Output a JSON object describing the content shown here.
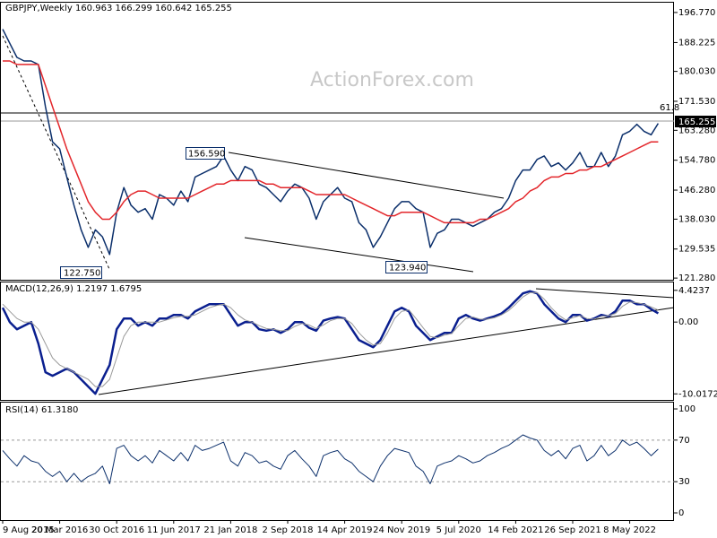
{
  "chart_data": [
    {
      "type": "line",
      "title": "GBPJPY,Weekly  160.963 166.299 160.642 165.255",
      "watermark": "ActionForex.com",
      "annotations": [
        "156.590",
        "122.750",
        "123.940",
        "61.8"
      ],
      "price_label": "165.255",
      "ylim": [
        120.8,
        199.3
      ],
      "yticks": [
        {
          "value": 196.77,
          "label": "196.770"
        },
        {
          "value": 188.225,
          "label": "188.225"
        },
        {
          "value": 180.03,
          "label": "180.030"
        },
        {
          "value": 171.53,
          "label": "171.530"
        },
        {
          "value": 163.28,
          "label": "163.280"
        },
        {
          "value": 154.78,
          "label": "154.780"
        },
        {
          "value": 146.28,
          "label": "146.280"
        },
        {
          "value": 138.03,
          "label": "138.030"
        },
        {
          "value": 129.535,
          "label": "129.535"
        },
        {
          "value": 121.28,
          "label": "121.280"
        }
      ],
      "series": [
        {
          "color": "#0b2f6b",
          "values": [
            192,
            188,
            184,
            183,
            183,
            182,
            170,
            160,
            158,
            150,
            142,
            135,
            130,
            135,
            133,
            128,
            140,
            147,
            142,
            140,
            141,
            138,
            145,
            144,
            142,
            146,
            143,
            150,
            151,
            152,
            153,
            156,
            152,
            149,
            153,
            152,
            148,
            147,
            145,
            143,
            146,
            148,
            147,
            144,
            138,
            143,
            145,
            147,
            144,
            143,
            137,
            135,
            130,
            133,
            137,
            141,
            143,
            143,
            141,
            140,
            130,
            134,
            135,
            138,
            138,
            137,
            136,
            137,
            138,
            140,
            141,
            144,
            149,
            152,
            152,
            155,
            156,
            153,
            154,
            152,
            154,
            157,
            153,
            153,
            157,
            153,
            156,
            162,
            163,
            165,
            163,
            162,
            165.255
          ]
        },
        {
          "color": "#e3262b",
          "values": [
            183,
            183,
            182,
            182,
            182,
            182,
            176,
            170,
            164,
            158,
            153,
            148,
            143,
            140,
            138,
            138,
            140,
            143,
            145,
            146,
            146,
            145,
            144,
            144,
            144,
            144,
            144,
            145,
            146,
            147,
            148,
            148,
            149,
            149,
            149,
            149,
            149,
            148,
            148,
            147,
            147,
            147,
            147,
            146,
            145,
            145,
            145,
            145,
            145,
            144,
            143,
            142,
            141,
            140,
            139,
            139,
            140,
            140,
            140,
            140,
            139,
            138,
            137,
            137,
            137,
            137,
            137,
            138,
            138,
            139,
            140,
            141,
            143,
            144,
            146,
            147,
            149,
            150,
            150,
            151,
            151,
            152,
            152,
            153,
            153,
            154,
            155,
            156,
            157,
            158,
            159,
            160,
            160
          ]
        }
      ]
    },
    {
      "type": "line",
      "title": "MACD(12,26,9) 1.2197 1.6795",
      "ylim": [
        -10.86,
        5.4
      ],
      "yticks": [
        4.4237,
        {
          "value": 0,
          "label": "0.00"
        },
        -10.0172
      ],
      "series": [
        {
          "color": "#0a1f8f",
          "width": 2.5,
          "values": [
            2,
            0,
            -1,
            -0.5,
            0,
            -3,
            -7,
            -7.5,
            -7,
            -6.5,
            -7,
            -8,
            -9,
            -10,
            -8,
            -6,
            -1,
            0.5,
            0.5,
            -0.5,
            0,
            -0.5,
            0.5,
            0.5,
            1,
            1,
            0.5,
            1.5,
            2,
            2.5,
            2.5,
            2.5,
            1,
            -0.5,
            0,
            0,
            -1,
            -1.2,
            -1,
            -1.5,
            -1,
            0,
            0,
            -0.8,
            -1.2,
            0.2,
            0.5,
            0.7,
            0.5,
            -1,
            -2.5,
            -3,
            -3.5,
            -2.5,
            -0.5,
            1.5,
            2,
            1.5,
            -0.5,
            -1.5,
            -2.5,
            -2,
            -1.5,
            -1.5,
            0.5,
            1,
            0.5,
            0.2,
            0.5,
            0.8,
            1.2,
            2,
            3,
            4,
            4.3,
            4,
            2.5,
            1.5,
            0.5,
            0,
            1,
            1,
            0.2,
            0.5,
            1,
            0.8,
            1.5,
            3,
            3,
            2.5,
            2.5,
            1.8,
            1.2197
          ]
        },
        {
          "color": "#9a9a9a",
          "width": 1,
          "values": [
            2.5,
            1.5,
            0.5,
            0,
            0,
            -1,
            -3,
            -5,
            -6,
            -6.5,
            -7,
            -7.5,
            -8,
            -9,
            -9,
            -8,
            -5,
            -2,
            -0.5,
            0,
            0,
            0,
            0,
            0.3,
            0.6,
            0.8,
            0.8,
            1,
            1.5,
            2,
            2.3,
            2.5,
            2,
            1,
            0.3,
            0,
            -0.5,
            -0.9,
            -1,
            -1.2,
            -1.2,
            -0.6,
            -0.2,
            -0.4,
            -0.9,
            -0.4,
            0.2,
            0.5,
            0.5,
            -0.2,
            -1.5,
            -2.5,
            -3.2,
            -3,
            -1.5,
            0.5,
            1.5,
            1.7,
            0.5,
            -0.8,
            -2,
            -2.2,
            -1.8,
            -1.6,
            -0.5,
            0.5,
            0.7,
            0.4,
            0.4,
            0.6,
            1,
            1.6,
            2.5,
            3.5,
            4.1,
            4.1,
            3.2,
            2,
            1,
            0.3,
            0.6,
            0.9,
            0.5,
            0.4,
            0.8,
            0.9,
            1.2,
            2.2,
            2.8,
            2.7,
            2.5,
            2.1,
            1.6795
          ]
        }
      ]
    },
    {
      "type": "line",
      "title": "RSI(14) 61.3180",
      "ylim": [
        -6.9,
        105.2
      ],
      "yticks": [
        100,
        70,
        30,
        0
      ],
      "levels": [
        70,
        30
      ],
      "categories": [
        "9 Aug 2015",
        null,
        null,
        null,
        null,
        null,
        null,
        null,
        "20 Mar 2016",
        null,
        null,
        null,
        null,
        null,
        null,
        null,
        "30 Oct 2016",
        null,
        null,
        null,
        null,
        null,
        null,
        null,
        "11 Jun 2017",
        null,
        null,
        null,
        null,
        null,
        null,
        null,
        "21 Jan 2018",
        null,
        null,
        null,
        null,
        null,
        null,
        null,
        "2 Sep 2018",
        null,
        null,
        null,
        null,
        null,
        null,
        null,
        "14 Apr 2019",
        null,
        null,
        null,
        null,
        null,
        null,
        null,
        "24 Nov 2019",
        null,
        null,
        null,
        null,
        null,
        null,
        null,
        "5 Jul 2020",
        null,
        null,
        null,
        null,
        null,
        null,
        null,
        "14 Feb 2021",
        null,
        null,
        null,
        null,
        null,
        null,
        null,
        "26 Sep 2021",
        null,
        null,
        null,
        null,
        null,
        null,
        null,
        "8 May 2022",
        null,
        null,
        null,
        null
      ],
      "series": [
        {
          "color": "#0b2f6b",
          "width": 1,
          "values": [
            60,
            52,
            45,
            55,
            50,
            48,
            40,
            35,
            40,
            30,
            38,
            30,
            35,
            38,
            45,
            28,
            62,
            65,
            55,
            50,
            55,
            48,
            60,
            55,
            50,
            58,
            50,
            65,
            60,
            62,
            65,
            68,
            50,
            45,
            58,
            55,
            48,
            50,
            45,
            42,
            55,
            60,
            52,
            45,
            35,
            55,
            58,
            60,
            52,
            48,
            40,
            35,
            30,
            45,
            55,
            62,
            60,
            58,
            45,
            40,
            28,
            45,
            48,
            50,
            55,
            52,
            48,
            50,
            55,
            58,
            62,
            65,
            70,
            75,
            72,
            70,
            60,
            55,
            60,
            52,
            62,
            65,
            50,
            55,
            65,
            55,
            60,
            70,
            65,
            68,
            62,
            55,
            61.318
          ]
        }
      ]
    }
  ]
}
